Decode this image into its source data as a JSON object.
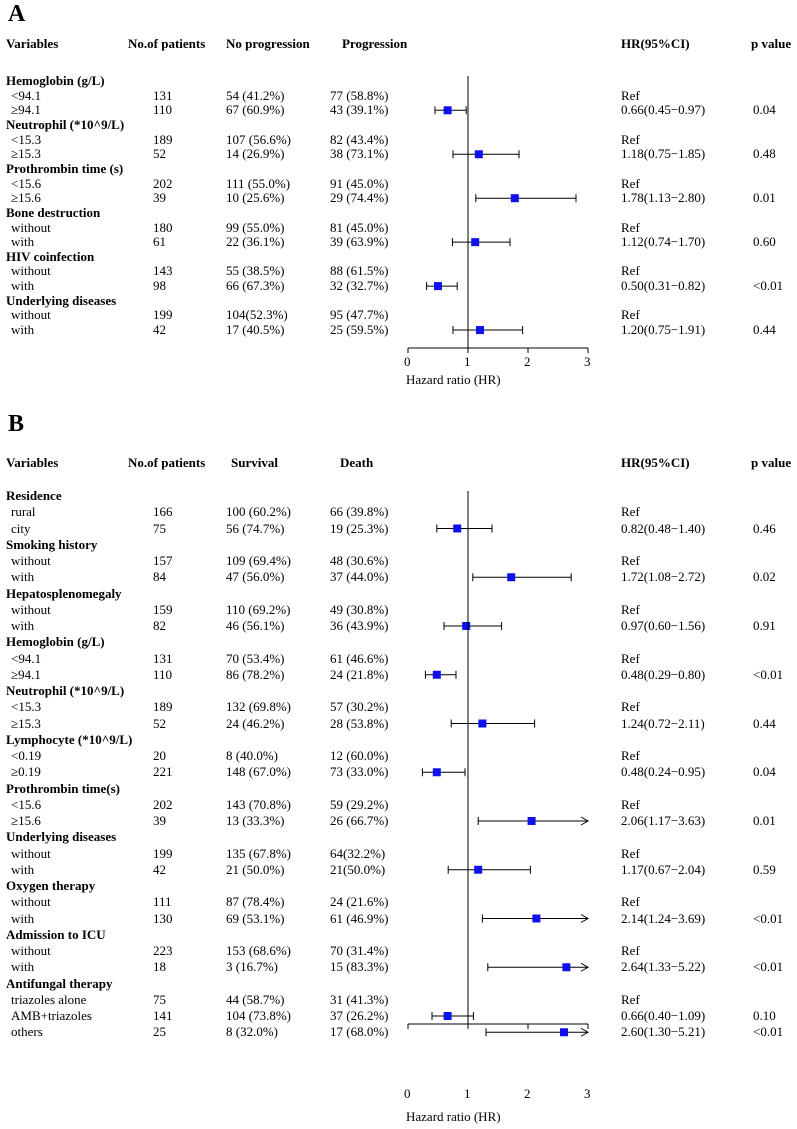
{
  "chart_data": [
    {
      "type": "forest",
      "panel_label": "A",
      "headers": {
        "variables": "Variables",
        "n": "No.of patients",
        "c1": "No progression",
        "c2": "Progression",
        "hr": "HR(95%CI)",
        "p": "p value"
      },
      "groups": [
        {
          "name": "Hemoglobin (g/L)",
          "rows": [
            {
              "label": "<94.1",
              "n": "131",
              "c1": "54 (41.2%)",
              "c2": "77 (58.8%)",
              "hr_text": "Ref",
              "p": "",
              "hr": null,
              "lo": null,
              "hi": null
            },
            {
              "label": "≥94.1",
              "n": "110",
              "c1": "67 (60.9%)",
              "c2": "43 (39.1%)",
              "hr_text": "0.66(0.45−0.97)",
              "p": "0.04",
              "hr": 0.66,
              "lo": 0.45,
              "hi": 0.97
            }
          ]
        },
        {
          "name": "Neutrophil (*10^9/L)",
          "rows": [
            {
              "label": "<15.3",
              "n": "189",
              "c1": "107 (56.6%)",
              "c2": "82 (43.4%)",
              "hr_text": "Ref",
              "p": "",
              "hr": null,
              "lo": null,
              "hi": null
            },
            {
              "label": "≥15.3",
              "n": "52",
              "c1": "14 (26.9%)",
              "c2": "38 (73.1%)",
              "hr_text": "1.18(0.75−1.85)",
              "p": "0.48",
              "hr": 1.18,
              "lo": 0.75,
              "hi": 1.85
            }
          ]
        },
        {
          "name": "Prothrombin time (s)",
          "rows": [
            {
              "label": "<15.6",
              "n": "202",
              "c1": "111 (55.0%)",
              "c2": "91 (45.0%)",
              "hr_text": "Ref",
              "p": "",
              "hr": null,
              "lo": null,
              "hi": null
            },
            {
              "label": "≥15.6",
              "n": "39",
              "c1": "10 (25.6%)",
              "c2": "29 (74.4%)",
              "hr_text": "1.78(1.13−2.80)",
              "p": "0.01",
              "hr": 1.78,
              "lo": 1.13,
              "hi": 2.8
            }
          ]
        },
        {
          "name": "Bone destruction",
          "rows": [
            {
              "label": "without",
              "n": "180",
              "c1": "99 (55.0%)",
              "c2": "81 (45.0%)",
              "hr_text": "Ref",
              "p": "",
              "hr": null,
              "lo": null,
              "hi": null
            },
            {
              "label": "with",
              "n": "61",
              "c1": "22 (36.1%)",
              "c2": "39 (63.9%)",
              "hr_text": "1.12(0.74−1.70)",
              "p": "0.60",
              "hr": 1.12,
              "lo": 0.74,
              "hi": 1.7
            }
          ]
        },
        {
          "name": "HIV coinfection",
          "rows": [
            {
              "label": "without",
              "n": "143",
              "c1": "55 (38.5%)",
              "c2": "88 (61.5%)",
              "hr_text": "Ref",
              "p": "",
              "hr": null,
              "lo": null,
              "hi": null
            },
            {
              "label": "with",
              "n": "98",
              "c1": "66 (67.3%)",
              "c2": "32 (32.7%)",
              "hr_text": "0.50(0.31−0.82)",
              "p": "<0.01",
              "hr": 0.5,
              "lo": 0.31,
              "hi": 0.82
            }
          ]
        },
        {
          "name": "Underlying diseases",
          "rows": [
            {
              "label": "without",
              "n": "199",
              "c1": "104(52.3%)",
              "c2": "95 (47.7%)",
              "hr_text": "Ref",
              "p": "",
              "hr": null,
              "lo": null,
              "hi": null
            },
            {
              "label": "with",
              "n": "42",
              "c1": "17 (40.5%)",
              "c2": "25 (59.5%)",
              "hr_text": "1.20(0.75−1.91)",
              "p": "0.44",
              "hr": 1.2,
              "lo": 0.75,
              "hi": 1.91
            }
          ]
        }
      ],
      "xaxis": {
        "label": "Hazard ratio (HR)",
        "ticks": [
          0,
          1,
          2,
          3
        ],
        "tick_labels": [
          "0",
          "1",
          "2",
          "3"
        ],
        "xlim": [
          0,
          3
        ],
        "ref_line": 1
      }
    },
    {
      "type": "forest",
      "panel_label": "B",
      "headers": {
        "variables": "Variables",
        "n": "No.of patients",
        "c1": "Survival",
        "c2": "Death",
        "hr": "HR(95%CI)",
        "p": "p value"
      },
      "groups": [
        {
          "name": "Residence",
          "rows": [
            {
              "label": "rural",
              "n": "166",
              "c1": "100 (60.2%)",
              "c2": "66 (39.8%)",
              "hr_text": "Ref",
              "p": "",
              "hr": null,
              "lo": null,
              "hi": null
            },
            {
              "label": "city",
              "n": "75",
              "c1": "56 (74.7%)",
              "c2": "19 (25.3%)",
              "hr_text": "0.82(0.48−1.40)",
              "p": "0.46",
              "hr": 0.82,
              "lo": 0.48,
              "hi": 1.4
            }
          ]
        },
        {
          "name": "Smoking history",
          "rows": [
            {
              "label": "without",
              "n": "157",
              "c1": "109 (69.4%)",
              "c2": "48 (30.6%)",
              "hr_text": "Ref",
              "p": "",
              "hr": null,
              "lo": null,
              "hi": null
            },
            {
              "label": "with",
              "n": "84",
              "c1": "47 (56.0%)",
              "c2": "37 (44.0%)",
              "hr_text": "1.72(1.08−2.72)",
              "p": "0.02",
              "hr": 1.72,
              "lo": 1.08,
              "hi": 2.72
            }
          ]
        },
        {
          "name": "Hepatosplenomegaly",
          "rows": [
            {
              "label": "without",
              "n": "159",
              "c1": "110 (69.2%)",
              "c2": "49 (30.8%)",
              "hr_text": "Ref",
              "p": "",
              "hr": null,
              "lo": null,
              "hi": null
            },
            {
              "label": "with",
              "n": "82",
              "c1": "46 (56.1%)",
              "c2": "36 (43.9%)",
              "hr_text": "0.97(0.60−1.56)",
              "p": "0.91",
              "hr": 0.97,
              "lo": 0.6,
              "hi": 1.56
            }
          ]
        },
        {
          "name": "Hemoglobin (g/L)",
          "rows": [
            {
              "label": "<94.1",
              "n": "131",
              "c1": "70 (53.4%)",
              "c2": "61 (46.6%)",
              "hr_text": "Ref",
              "p": "",
              "hr": null,
              "lo": null,
              "hi": null
            },
            {
              "label": "≥94.1",
              "n": "110",
              "c1": "86 (78.2%)",
              "c2": "24 (21.8%)",
              "hr_text": "0.48(0.29−0.80)",
              "p": "<0.01",
              "hr": 0.48,
              "lo": 0.29,
              "hi": 0.8
            }
          ]
        },
        {
          "name": "Neutrophil (*10^9/L)",
          "rows": [
            {
              "label": "<15.3",
              "n": "189",
              "c1": "132 (69.8%)",
              "c2": "57 (30.2%)",
              "hr_text": "Ref",
              "p": "",
              "hr": null,
              "lo": null,
              "hi": null
            },
            {
              "label": "≥15.3",
              "n": "52",
              "c1": "24 (46.2%)",
              "c2": "28 (53.8%)",
              "hr_text": "1.24(0.72−2.11)",
              "p": "0.44",
              "hr": 1.24,
              "lo": 0.72,
              "hi": 2.11
            }
          ]
        },
        {
          "name": "Lymphocyte (*10^9/L)",
          "rows": [
            {
              "label": "<0.19",
              "n": "20",
              "c1": "8 (40.0%)",
              "c2": "12 (60.0%)",
              "hr_text": "Ref",
              "p": "",
              "hr": null,
              "lo": null,
              "hi": null
            },
            {
              "label": "≥0.19",
              "n": "221",
              "c1": "148 (67.0%)",
              "c2": "73 (33.0%)",
              "hr_text": "0.48(0.24−0.95)",
              "p": "0.04",
              "hr": 0.48,
              "lo": 0.24,
              "hi": 0.95
            }
          ]
        },
        {
          "name": "Prothrombin time(s)",
          "rows": [
            {
              "label": "<15.6",
              "n": "202",
              "c1": "143 (70.8%)",
              "c2": "59 (29.2%)",
              "hr_text": "Ref",
              "p": "",
              "hr": null,
              "lo": null,
              "hi": null
            },
            {
              "label": "≥15.6",
              "n": "39",
              "c1": "13 (33.3%)",
              "c2": "26 (66.7%)",
              "hr_text": "2.06(1.17−3.63)",
              "p": "0.01",
              "hr": 2.06,
              "lo": 1.17,
              "hi": 3.63
            }
          ]
        },
        {
          "name": "Underlying diseases",
          "rows": [
            {
              "label": "without",
              "n": "199",
              "c1": "135 (67.8%)",
              "c2": "64(32.2%)",
              "hr_text": "Ref",
              "p": "",
              "hr": null,
              "lo": null,
              "hi": null
            },
            {
              "label": "with",
              "n": "42",
              "c1": "21 (50.0%)",
              "c2": "21(50.0%)",
              "hr_text": "1.17(0.67−2.04)",
              "p": "0.59",
              "hr": 1.17,
              "lo": 0.67,
              "hi": 2.04
            }
          ]
        },
        {
          "name": "Oxygen therapy",
          "rows": [
            {
              "label": "without",
              "n": "111",
              "c1": "87 (78.4%)",
              "c2": "24 (21.6%)",
              "hr_text": "Ref",
              "p": "",
              "hr": null,
              "lo": null,
              "hi": null
            },
            {
              "label": "with",
              "n": "130",
              "c1": "69 (53.1%)",
              "c2": "61 (46.9%)",
              "hr_text": "2.14(1.24−3.69)",
              "p": "<0.01",
              "hr": 2.14,
              "lo": 1.24,
              "hi": 3.69
            }
          ]
        },
        {
          "name": "Admission to ICU",
          "rows": [
            {
              "label": "without",
              "n": "223",
              "c1": "153 (68.6%)",
              "c2": "70 (31.4%)",
              "hr_text": "Ref",
              "p": "",
              "hr": null,
              "lo": null,
              "hi": null
            },
            {
              "label": "with",
              "n": "18",
              "c1": "3 (16.7%)",
              "c2": "15 (83.3%)",
              "hr_text": "2.64(1.33−5.22)",
              "p": "<0.01",
              "hr": 2.64,
              "lo": 1.33,
              "hi": 5.22
            }
          ]
        },
        {
          "name": "Antifungal therapy",
          "rows": [
            {
              "label": "triazoles alone",
              "n": "75",
              "c1": "44 (58.7%)",
              "c2": "31 (41.3%)",
              "hr_text": "Ref",
              "p": "",
              "hr": null,
              "lo": null,
              "hi": null
            },
            {
              "label": "AMB+triazoles",
              "n": "141",
              "c1": "104 (73.8%)",
              "c2": "37 (26.2%)",
              "hr_text": "0.66(0.40−1.09)",
              "p": "0.10",
              "hr": 0.66,
              "lo": 0.4,
              "hi": 1.09
            },
            {
              "label": "others",
              "n": "25",
              "c1": "8 (32.0%)",
              "c2": "17 (68.0%)",
              "hr_text": "2.60(1.30−5.21)",
              "p": "<0.01",
              "hr": 2.6,
              "lo": 1.3,
              "hi": 5.21
            }
          ]
        }
      ],
      "xaxis": {
        "label": "Hazard ratio (HR)",
        "ticks": [
          0,
          1,
          2,
          3
        ],
        "tick_labels": [
          "0",
          "1",
          "2",
          "3"
        ],
        "xlim": [
          0,
          3
        ],
        "ref_line": 1
      }
    }
  ],
  "colors": {
    "marker": "#1010ee",
    "text": "#000000",
    "line": "#000000"
  }
}
